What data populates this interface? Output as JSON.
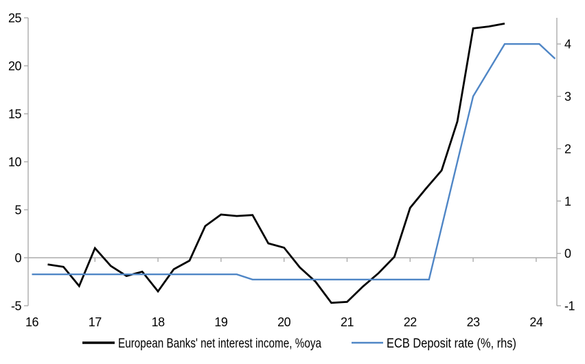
{
  "chart_data": {
    "type": "line",
    "title": "",
    "xlabel": "",
    "ylabel_left": "",
    "ylabel_right": "",
    "grid": "zero-line-only",
    "legend_position": "bottom",
    "x_axis": {
      "ticks": [
        16,
        17,
        18,
        19,
        20,
        21,
        22,
        23,
        24
      ],
      "range": [
        15.94,
        24.33
      ]
    },
    "left_axis": {
      "ticks": [
        -5,
        0,
        5,
        10,
        15,
        20,
        25
      ],
      "range": [
        -5,
        25
      ]
    },
    "right_axis": {
      "ticks": [
        -1,
        0,
        1,
        2,
        3,
        4
      ],
      "range": [
        -1,
        4.5
      ]
    },
    "series": [
      {
        "name": "European Banks' net interest income, %oya",
        "axis": "left",
        "color": "#000000",
        "points": [
          [
            16.25,
            -0.7
          ],
          [
            16.5,
            -0.95
          ],
          [
            16.75,
            -2.95
          ],
          [
            17.0,
            1.0
          ],
          [
            17.25,
            -0.85
          ],
          [
            17.5,
            -1.9
          ],
          [
            17.75,
            -1.45
          ],
          [
            18.0,
            -3.5
          ],
          [
            18.25,
            -1.2
          ],
          [
            18.5,
            -0.3
          ],
          [
            18.75,
            3.3
          ],
          [
            19.0,
            4.5
          ],
          [
            19.25,
            4.35
          ],
          [
            19.5,
            4.45
          ],
          [
            19.75,
            1.5
          ],
          [
            20.0,
            1.05
          ],
          [
            20.25,
            -1.0
          ],
          [
            20.5,
            -2.5
          ],
          [
            20.75,
            -4.7
          ],
          [
            21.0,
            -4.6
          ],
          [
            21.25,
            -3.0
          ],
          [
            21.5,
            -1.6
          ],
          [
            21.75,
            0.1
          ],
          [
            22.0,
            5.2
          ],
          [
            22.25,
            7.2
          ],
          [
            22.5,
            9.1
          ],
          [
            22.75,
            14.2
          ],
          [
            23.0,
            23.9
          ],
          [
            23.25,
            24.1
          ],
          [
            23.5,
            24.4
          ]
        ]
      },
      {
        "name": "ECB Deposit rate (%, rhs)",
        "axis": "right",
        "color": "#4f86c6",
        "points": [
          [
            16.0,
            -0.4
          ],
          [
            19.25,
            -0.4
          ],
          [
            19.5,
            -0.5
          ],
          [
            22.3,
            -0.5
          ],
          [
            23.0,
            3.0
          ],
          [
            23.5,
            4.0
          ],
          [
            24.05,
            4.0
          ],
          [
            24.3,
            3.72
          ]
        ]
      }
    ]
  },
  "colors": {
    "axis": "#ababab",
    "zero_line": "#ababab",
    "background": "#ffffff",
    "text": "#000000"
  }
}
